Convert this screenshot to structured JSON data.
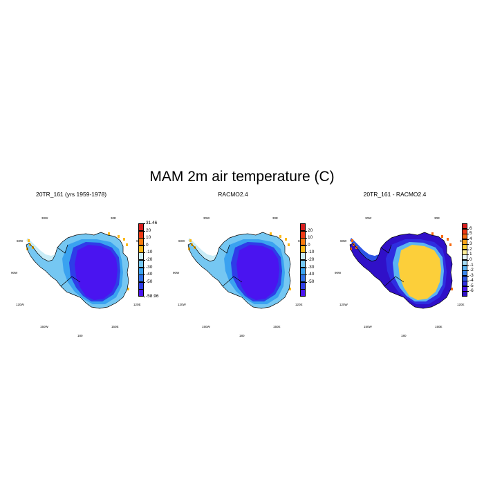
{
  "title": "MAM 2m air temperature (C)",
  "panels": [
    {
      "title": "20TR_161 (yrs 1959-1978)",
      "lon_labels": {
        "w30": "30W",
        "e30": "30E",
        "w60": "60W",
        "e60": "60E",
        "w90": "90W",
        "e90": "90E",
        "w120": "120W",
        "e120": "120E",
        "w150": "150W",
        "e150": "150E",
        "s180": "180"
      },
      "colorbar": {
        "labels": [
          "31.46",
          "20",
          "10",
          "0",
          "-10",
          "-20",
          "-30",
          "-40",
          "-50",
          "-58.96"
        ],
        "colors": [
          "#d81e1e",
          "#ee3a14",
          "#f97b0e",
          "#fcb918",
          "#c8ecf7",
          "#75c7f2",
          "#3aa2f0",
          "#2d6fe8",
          "#2e3de8",
          "#4a14f0"
        ]
      },
      "fill_colors": {
        "interior": "#4a14f0",
        "mid": "#2e3de8",
        "outer": "#3aa2f0",
        "coast": "#75c7f2",
        "peninsula": "#c8ecf7",
        "warm": "#fcb918"
      }
    },
    {
      "title": "RACMO2.4",
      "lon_labels": {
        "w30": "30W",
        "e30": "30E",
        "w60": "60W",
        "e60": "60E",
        "w90": "90W",
        "e90": "90E",
        "w120": "120W",
        "e120": "120E",
        "w150": "150W",
        "e150": "150E",
        "s180": "180"
      },
      "colorbar": {
        "labels": [
          "20",
          "10",
          "0",
          "-10",
          "-20",
          "-30",
          "-40",
          "-50"
        ],
        "colors": [
          "#d81e1e",
          "#ee3a14",
          "#f97b0e",
          "#fcb918",
          "#c8ecf7",
          "#75c7f2",
          "#3aa2f0",
          "#2d6fe8",
          "#2e3de8",
          "#4a14f0"
        ]
      },
      "fill_colors": {
        "interior": "#4a14f0",
        "mid": "#2e3de8",
        "outer": "#3aa2f0",
        "coast": "#75c7f2",
        "peninsula": "#c8ecf7",
        "warm": "#fcb918"
      }
    },
    {
      "title": "20TR_161 - RACMO2.4",
      "lon_labels": {
        "w30": "30W",
        "e30": "30E",
        "w60": "60W",
        "e60": "60E",
        "w90": "90W",
        "e90": "90E",
        "w120": "120W",
        "e120": "120E",
        "w150": "150W",
        "e150": "150E",
        "s180": "180"
      },
      "colorbar": {
        "labels": [
          "6",
          "5",
          "4",
          "3",
          "2",
          "1",
          "0",
          "-1",
          "-2",
          "-3",
          "-4",
          "-5",
          "-6"
        ],
        "colors": [
          "#d81e1e",
          "#ee3a14",
          "#f76a10",
          "#fca21a",
          "#fccf3a",
          "#fff09a",
          "#e6f6fc",
          "#a6dcf5",
          "#5bb4f2",
          "#3a86ee",
          "#2d55e6",
          "#2e2ee0",
          "#4a14f0",
          "#3010c8"
        ]
      },
      "fill_colors": {
        "interior": "#fccf3a",
        "mid": "#5bb4f2",
        "outer": "#2e2ee0",
        "coast": "#3010c8",
        "peninsula": "#2d55e6",
        "warm": "#f76a10"
      }
    }
  ]
}
